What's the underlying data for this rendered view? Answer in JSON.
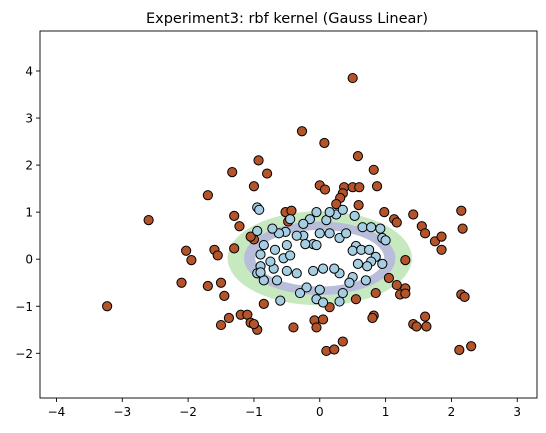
{
  "chart_data": {
    "type": "scatter",
    "title": "Experiment3: rbf kernel (Gauss Linear)",
    "xlabel": "",
    "ylabel": "",
    "xlim": [
      -4.25,
      3.3
    ],
    "ylim": [
      -2.95,
      4.85
    ],
    "xticks": [
      "−4",
      "−3",
      "−2",
      "−1",
      "0",
      "1",
      "2",
      "3"
    ],
    "yticks": [
      "−2",
      "−1",
      "0",
      "1",
      "2",
      "3",
      "4"
    ],
    "grid": false,
    "colors": {
      "outer_class": "#b5532a",
      "inner_class": "#a6cee3",
      "region_band_outer": "#c7e9c0",
      "region_band_inner": "#b8bdda",
      "region_center": "#ffffff"
    },
    "decision_regions": [
      {
        "center": [
          0.0,
          0.02
        ],
        "radii": [
          1.4,
          1.0
        ],
        "color": "#c7e9c0"
      },
      {
        "center": [
          0.0,
          0.02
        ],
        "radii": [
          1.15,
          0.78
        ],
        "color": "#b8bdda"
      },
      {
        "center": [
          0.0,
          0.02
        ],
        "radii": [
          0.98,
          0.6
        ],
        "color": "#ffffff"
      }
    ],
    "series": [
      {
        "color": "#b5532a",
        "points": [
          [
            0.5,
            3.85
          ],
          [
            -0.27,
            2.72
          ],
          [
            0.07,
            2.47
          ],
          [
            0.58,
            2.19
          ],
          [
            -0.93,
            2.1
          ],
          [
            0.82,
            1.9
          ],
          [
            -1.33,
            1.85
          ],
          [
            -0.8,
            1.82
          ],
          [
            0.0,
            1.57
          ],
          [
            0.08,
            1.48
          ],
          [
            0.37,
            1.53
          ],
          [
            0.5,
            1.53
          ],
          [
            0.6,
            1.53
          ],
          [
            0.35,
            1.4
          ],
          [
            0.31,
            1.3
          ],
          [
            -1.7,
            1.36
          ],
          [
            -1.0,
            1.55
          ],
          [
            0.87,
            1.55
          ],
          [
            0.25,
            1.17
          ],
          [
            0.59,
            1.15
          ],
          [
            -0.52,
            1.0
          ],
          [
            -0.43,
            1.03
          ],
          [
            2.15,
            1.03
          ],
          [
            1.42,
            0.95
          ],
          [
            1.13,
            0.85
          ],
          [
            1.17,
            0.78
          ],
          [
            0.98,
            1.0
          ],
          [
            -2.6,
            0.83
          ],
          [
            -1.3,
            0.92
          ],
          [
            -0.48,
            0.8
          ],
          [
            -1.22,
            0.7
          ],
          [
            2.17,
            0.65
          ],
          [
            1.55,
            0.7
          ],
          [
            1.6,
            0.55
          ],
          [
            -1.0,
            0.42
          ],
          [
            -1.05,
            0.48
          ],
          [
            -1.3,
            0.23
          ],
          [
            -1.6,
            0.2
          ],
          [
            -2.03,
            0.18
          ],
          [
            -1.95,
            -0.02
          ],
          [
            -1.55,
            0.08
          ],
          [
            1.75,
            0.38
          ],
          [
            1.85,
            0.48
          ],
          [
            1.85,
            0.2
          ],
          [
            1.3,
            -0.02
          ],
          [
            1.05,
            -0.4
          ],
          [
            1.17,
            -0.55
          ],
          [
            1.22,
            -0.75
          ],
          [
            0.85,
            -0.72
          ],
          [
            1.3,
            -0.62
          ],
          [
            1.3,
            -0.73
          ],
          [
            2.15,
            -0.75
          ],
          [
            2.2,
            -0.8
          ],
          [
            -3.23,
            -1.0
          ],
          [
            -2.1,
            -0.5
          ],
          [
            -1.7,
            -0.57
          ],
          [
            -1.5,
            -0.5
          ],
          [
            -1.45,
            -0.78
          ],
          [
            -1.38,
            -1.25
          ],
          [
            -1.2,
            -1.18
          ],
          [
            -1.1,
            -1.18
          ],
          [
            -1.05,
            -1.35
          ],
          [
            -0.95,
            -1.5
          ],
          [
            -1.0,
            -1.38
          ],
          [
            -1.5,
            -1.4
          ],
          [
            -0.85,
            -0.95
          ],
          [
            -0.4,
            -1.45
          ],
          [
            -0.08,
            -1.3
          ],
          [
            -0.05,
            -1.45
          ],
          [
            0.05,
            -1.28
          ],
          [
            0.1,
            -1.95
          ],
          [
            0.22,
            -1.92
          ],
          [
            0.35,
            -1.75
          ],
          [
            0.55,
            -0.85
          ],
          [
            0.82,
            -1.2
          ],
          [
            0.8,
            -1.25
          ],
          [
            0.15,
            -1.02
          ],
          [
            1.42,
            -1.38
          ],
          [
            1.47,
            -1.43
          ],
          [
            1.62,
            -1.43
          ],
          [
            1.6,
            -1.22
          ],
          [
            2.12,
            -1.93
          ],
          [
            2.3,
            -1.85
          ]
        ]
      },
      {
        "color": "#a6cee3",
        "points": [
          [
            -0.95,
            1.1
          ],
          [
            -0.92,
            1.05
          ],
          [
            -0.45,
            0.85
          ],
          [
            -0.15,
            0.85
          ],
          [
            0.1,
            0.83
          ],
          [
            0.25,
            0.95
          ],
          [
            0.53,
            0.92
          ],
          [
            0.15,
            0.55
          ],
          [
            0.0,
            0.55
          ],
          [
            -0.25,
            0.5
          ],
          [
            -0.52,
            0.58
          ],
          [
            -0.62,
            0.55
          ],
          [
            -0.95,
            0.6
          ],
          [
            -0.72,
            0.65
          ],
          [
            -0.1,
            0.32
          ],
          [
            -0.22,
            0.32
          ],
          [
            -0.05,
            0.3
          ],
          [
            0.3,
            0.45
          ],
          [
            0.4,
            0.55
          ],
          [
            0.65,
            0.68
          ],
          [
            0.78,
            0.68
          ],
          [
            0.92,
            0.65
          ],
          [
            0.95,
            0.45
          ],
          [
            1.0,
            0.4
          ],
          [
            0.55,
            0.28
          ],
          [
            0.5,
            0.18
          ],
          [
            0.63,
            0.2
          ],
          [
            0.75,
            0.2
          ],
          [
            0.85,
            0.05
          ],
          [
            0.78,
            -0.05
          ],
          [
            0.95,
            -0.1
          ],
          [
            0.72,
            -0.15
          ],
          [
            0.58,
            -0.1
          ],
          [
            0.7,
            -0.45
          ],
          [
            0.5,
            -0.38
          ],
          [
            0.45,
            -0.5
          ],
          [
            0.3,
            -0.3
          ],
          [
            0.22,
            -0.2
          ],
          [
            0.05,
            -0.2
          ],
          [
            -0.1,
            -0.25
          ],
          [
            0.35,
            -0.72
          ],
          [
            0.3,
            -0.9
          ],
          [
            0.0,
            -0.65
          ],
          [
            -0.05,
            -0.85
          ],
          [
            0.05,
            -0.92
          ],
          [
            -0.2,
            -0.6
          ],
          [
            -0.3,
            -0.72
          ],
          [
            -0.6,
            -0.88
          ],
          [
            -0.35,
            -0.3
          ],
          [
            -0.5,
            -0.25
          ],
          [
            -0.7,
            -0.2
          ],
          [
            -0.75,
            -0.05
          ],
          [
            -0.9,
            -0.15
          ],
          [
            -0.9,
            0.1
          ],
          [
            -0.85,
            0.3
          ],
          [
            -0.68,
            0.2
          ],
          [
            -0.65,
            -0.45
          ],
          [
            -0.85,
            -0.45
          ],
          [
            -0.95,
            -0.3
          ],
          [
            -0.9,
            -0.28
          ],
          [
            -0.55,
            0.02
          ],
          [
            -0.45,
            0.08
          ],
          [
            -0.5,
            0.3
          ],
          [
            -0.35,
            0.5
          ],
          [
            -0.25,
            0.75
          ],
          [
            0.15,
            1.0
          ],
          [
            0.35,
            1.05
          ],
          [
            -0.05,
            1.0
          ]
        ]
      }
    ]
  }
}
